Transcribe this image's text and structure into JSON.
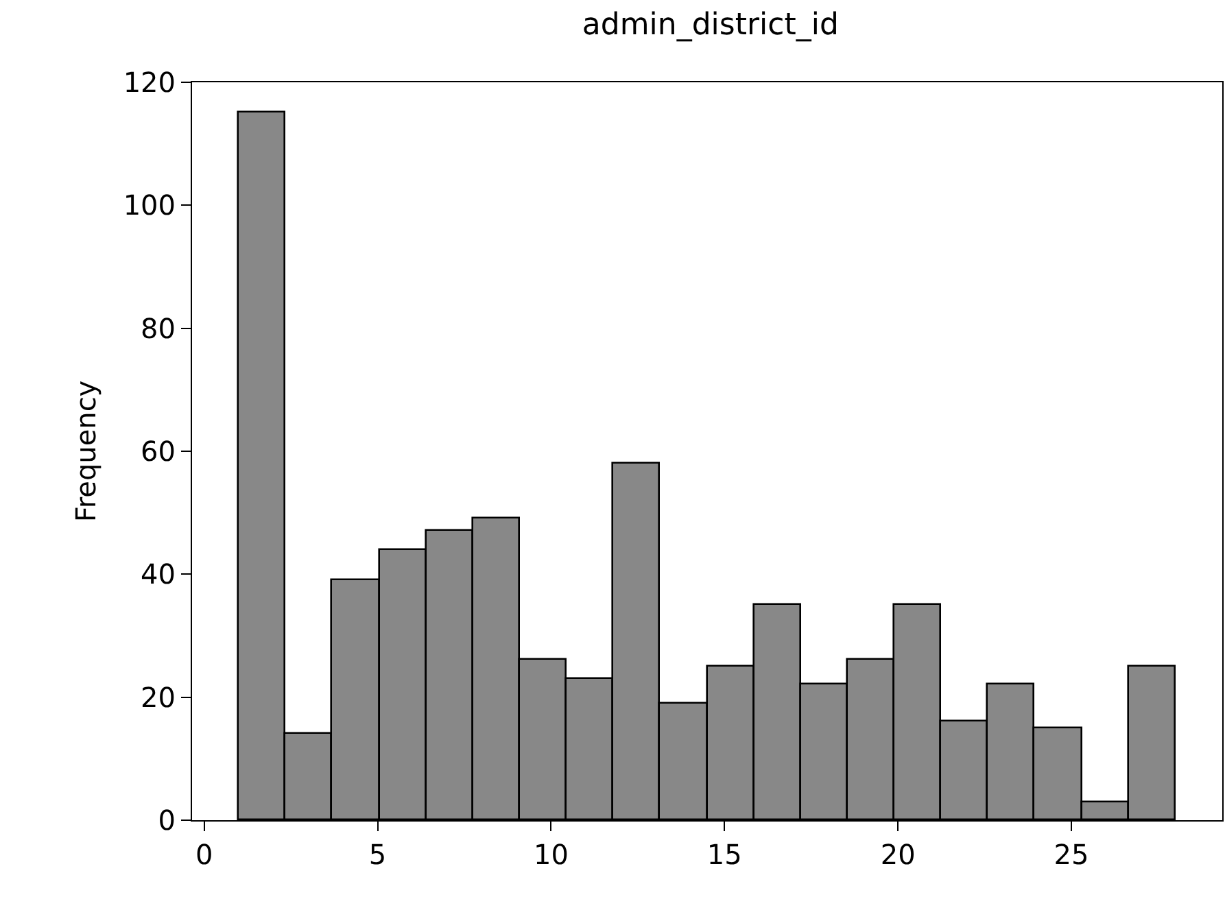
{
  "chart_data": {
    "type": "histogram",
    "title": "admin_district_id",
    "ylabel": "Frequency",
    "bins": [
      1,
      2.35,
      3.7,
      5.05,
      6.4,
      7.75,
      9.1,
      10.45,
      11.8,
      13.15,
      14.5,
      15.85,
      17.2,
      18.55,
      19.9,
      21.25,
      22.6,
      23.95,
      25.3,
      26.65,
      28
    ],
    "values": [
      115,
      14,
      39,
      44,
      47,
      49,
      26,
      23,
      58,
      19,
      25,
      35,
      22,
      26,
      35,
      16,
      22,
      15,
      3,
      25
    ],
    "color": "#888888",
    "xlim": [
      -0.35,
      29.35
    ],
    "xticks": [
      0,
      5,
      10,
      15,
      20,
      25
    ],
    "ylim": [
      0,
      120
    ],
    "yticks": [
      0,
      20,
      40,
      60,
      80,
      100,
      120
    ]
  }
}
